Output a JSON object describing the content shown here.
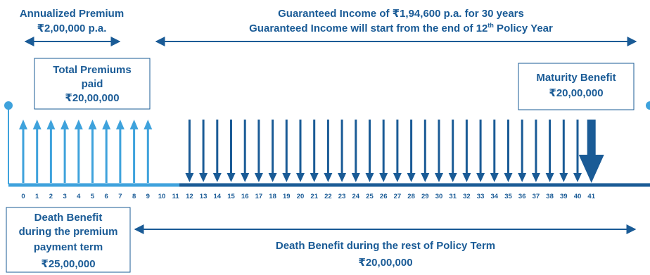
{
  "annualized_premium": {
    "title": "Annualized Premium",
    "amount": "₹2,00,000 p.a."
  },
  "guaranteed_income": {
    "line1": "Guaranteed Income of ₹1,94,600 p.a. for 30 years",
    "line2_before": "Guaranteed Income will start from the end of 12",
    "line2_sup": "th",
    "line2_after": " Policy Year"
  },
  "total_premiums": {
    "line1": "Total Premiums",
    "line2": "paid",
    "amount": "₹20,00,000"
  },
  "maturity_benefit": {
    "title": "Maturity Benefit",
    "amount": "₹20,00,000"
  },
  "death_benefit_premium_term": {
    "line1": "Death Benefit",
    "line2": "during the premium",
    "line3": "payment term",
    "amount": "₹25,00,000"
  },
  "death_benefit_rest": {
    "title": "Death Benefit during the rest of Policy Term",
    "amount": "₹20,00,000"
  },
  "timeline": {
    "years": [
      "0",
      "1",
      "2",
      "3",
      "4",
      "5",
      "6",
      "7",
      "8",
      "9",
      "10",
      "11",
      "12",
      "13",
      "14",
      "15",
      "16",
      "17",
      "18",
      "19",
      "20",
      "21",
      "22",
      "23",
      "24",
      "25",
      "26",
      "27",
      "28",
      "29",
      "30",
      "31",
      "32",
      "33",
      "34",
      "35",
      "36",
      "37",
      "38",
      "39",
      "40",
      "41"
    ],
    "premium_years": [
      0,
      1,
      2,
      3,
      4,
      5,
      6,
      7,
      8,
      9
    ],
    "income_years": [
      12,
      13,
      14,
      15,
      16,
      17,
      18,
      19,
      20,
      21,
      22,
      23,
      24,
      25,
      26,
      27,
      28,
      29,
      30,
      31,
      32,
      33,
      34,
      35,
      36,
      37,
      38,
      39,
      40
    ],
    "maturity_year": 41
  },
  "colors": {
    "premium": "#3ea2dc",
    "income": "#1a5b96",
    "text": "#1a5b96"
  }
}
